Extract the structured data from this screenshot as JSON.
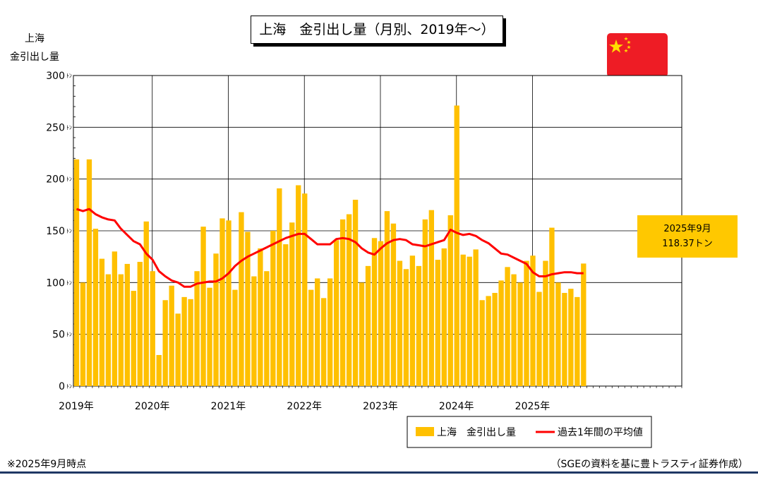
{
  "title": "上海　金引出し量（月別、2019年〜）",
  "y_axis_title": [
    "上海",
    "金引出し量"
  ],
  "callout": {
    "line1": "2025年9月",
    "line2": "118.37トン"
  },
  "footnote": "※2025年9月時点",
  "source": "（SGEの資料を基に豊トラスティ証券作成）",
  "colors": {
    "bar": "#ffc000",
    "line": "#ff0000",
    "callout": "#ffc800",
    "rule": "#1f3864",
    "flag": "#ee1c25",
    "star": "#ffde00"
  },
  "icons": {
    "flag": "china-flag-icon"
  },
  "chart_data": {
    "type": "bar",
    "ylim": [
      0,
      300
    ],
    "y_ticks": [
      0,
      50,
      100,
      150,
      200,
      250,
      300
    ],
    "y_tick_labels": [
      "0",
      "50",
      "100",
      "150",
      "200",
      "250",
      "300"
    ],
    "y_unit": "ﾄﾝ",
    "x_tick_labels": [
      "2019年",
      "2020年",
      "2021年",
      "2022年",
      "2023年",
      "2024年",
      "2025年"
    ],
    "grid": true,
    "legend_position": "bottom-right",
    "series": [
      {
        "name": "上海　金引出し量",
        "type": "bar",
        "values": [
          219,
          100,
          219,
          152,
          123,
          108,
          130,
          108,
          118,
          92,
          120,
          159,
          111,
          30,
          83,
          97,
          70,
          86,
          84,
          111,
          154,
          95,
          128,
          162,
          160,
          93,
          168,
          149,
          106,
          133,
          111,
          150,
          191,
          137,
          158,
          194,
          186,
          93,
          104,
          85,
          104,
          141,
          161,
          166,
          180,
          100,
          116,
          143,
          140,
          169,
          157,
          121,
          113,
          126,
          116,
          161,
          170,
          122,
          133,
          165,
          271,
          127,
          125,
          132,
          83,
          87,
          90,
          102,
          115,
          108,
          100,
          121,
          126,
          91,
          121,
          153,
          100,
          90,
          94,
          86,
          118.37
        ]
      },
      {
        "name": "過去1年間の平均値",
        "type": "line",
        "values": [
          171,
          169,
          171,
          166,
          163,
          161,
          160,
          152,
          146,
          140,
          137,
          128,
          122,
          111,
          106,
          102,
          100,
          96,
          96,
          99,
          100,
          101,
          101,
          104,
          109,
          116,
          121,
          125,
          128,
          131,
          134,
          137,
          140,
          143,
          145,
          147,
          147,
          142,
          137,
          137,
          137,
          142,
          143,
          142,
          139,
          133,
          129,
          127,
          133,
          138,
          141,
          142,
          141,
          137,
          136,
          135,
          137,
          139,
          141,
          151,
          148,
          146,
          147,
          145,
          141,
          138,
          133,
          128,
          127,
          124,
          121,
          118,
          110,
          106,
          106,
          108,
          109,
          110,
          110,
          109,
          109
        ]
      }
    ]
  }
}
